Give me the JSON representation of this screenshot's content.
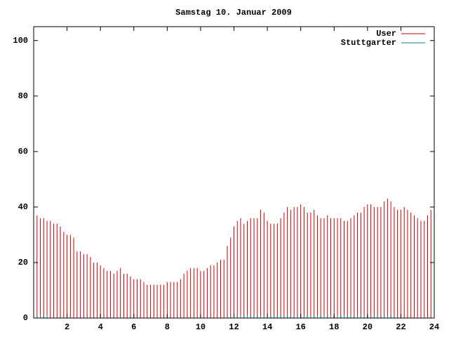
{
  "chart_data": {
    "type": "impulse",
    "title": "Samstag 10. Januar 2009",
    "x": [
      0,
      0.2,
      0.4,
      0.6,
      0.8,
      1,
      1.2,
      1.4,
      1.6,
      1.8,
      2,
      2.2,
      2.4,
      2.6,
      2.8,
      3,
      3.2,
      3.4,
      3.6,
      3.8,
      4,
      4.2,
      4.4,
      4.6,
      4.8,
      5,
      5.2,
      5.4,
      5.6,
      5.8,
      6,
      6.2,
      6.4,
      6.6,
      6.8,
      7,
      7.2,
      7.4,
      7.6,
      7.8,
      8,
      8.2,
      8.4,
      8.6,
      8.8,
      9,
      9.2,
      9.4,
      9.6,
      9.8,
      10,
      10.2,
      10.4,
      10.6,
      10.8,
      11,
      11.2,
      11.4,
      11.6,
      11.8,
      12,
      12.2,
      12.4,
      12.6,
      12.8,
      13,
      13.2,
      13.4,
      13.6,
      13.8,
      14,
      14.2,
      14.4,
      14.6,
      14.8,
      15,
      15.2,
      15.4,
      15.6,
      15.8,
      16,
      16.2,
      16.4,
      16.6,
      16.8,
      17,
      17.2,
      17.4,
      17.6,
      17.8,
      18,
      18.2,
      18.4,
      18.6,
      18.8,
      19,
      19.2,
      19.4,
      19.6,
      19.8,
      20,
      20.2,
      20.4,
      20.6,
      20.8,
      21,
      21.2,
      21.4,
      21.6,
      21.8,
      22,
      22.2,
      22.4,
      22.6,
      22.8,
      23,
      23.2,
      23.4,
      23.6,
      23.8
    ],
    "series": [
      {
        "name": "User",
        "color": "#cc0000",
        "values": [
          36,
          37,
          36,
          36,
          35,
          35,
          34,
          34,
          33,
          31,
          30,
          30,
          29,
          24,
          24,
          23,
          23,
          22,
          20,
          20,
          19,
          18,
          17,
          17,
          16,
          17,
          18,
          16,
          16,
          15,
          14,
          14,
          14,
          13,
          12,
          12,
          12,
          12,
          12,
          12,
          13,
          13,
          13,
          13,
          14,
          16,
          17,
          18,
          18,
          18,
          17,
          17,
          18,
          19,
          19,
          20,
          21,
          21,
          26,
          29,
          33,
          35,
          36,
          34,
          35,
          36,
          36,
          36,
          39,
          38,
          35,
          34,
          34,
          34,
          36,
          38,
          40,
          39,
          40,
          40,
          41,
          40,
          38,
          38,
          39,
          37,
          36,
          36,
          37,
          36,
          36,
          36,
          36,
          35,
          35,
          36,
          37,
          38,
          38,
          40,
          41,
          41,
          40,
          40,
          40,
          42,
          43,
          42,
          40,
          39,
          39,
          40,
          39,
          38,
          37,
          36,
          35,
          35,
          37,
          39
        ]
      },
      {
        "name": "Stuttgarter",
        "color": "#008b8b",
        "values": [
          1,
          1,
          1,
          1,
          1,
          0,
          0,
          0,
          0,
          0,
          0,
          0,
          0,
          0,
          0,
          0,
          0,
          0,
          0,
          0,
          0,
          0,
          0,
          0,
          0,
          0,
          0,
          0,
          0,
          0,
          0,
          0,
          0,
          0,
          0,
          0,
          0,
          0,
          0,
          0,
          0,
          0,
          0,
          0,
          0,
          0,
          0,
          0,
          0,
          0,
          0,
          0,
          0,
          0,
          0,
          0,
          0,
          0,
          0,
          1,
          1,
          1,
          1,
          1,
          1,
          1,
          1,
          1,
          1,
          1,
          1,
          1,
          1,
          1,
          1,
          1,
          1,
          1,
          1,
          1,
          1,
          1,
          1,
          1,
          1,
          1,
          1,
          1,
          1,
          1,
          1,
          1,
          1,
          1,
          1,
          1,
          1,
          1,
          1,
          1,
          1,
          1,
          1,
          1,
          1,
          1,
          1,
          1,
          1,
          0,
          0,
          0,
          0,
          0,
          0,
          0,
          0,
          0,
          0,
          0
        ]
      }
    ],
    "xlim": [
      0,
      24
    ],
    "xticks": [
      2,
      4,
      6,
      8,
      10,
      12,
      14,
      16,
      18,
      20,
      22,
      24
    ],
    "ylim": [
      0,
      105
    ],
    "yticks": [
      0,
      20,
      40,
      60,
      80,
      100
    ],
    "legend": "top-right"
  }
}
